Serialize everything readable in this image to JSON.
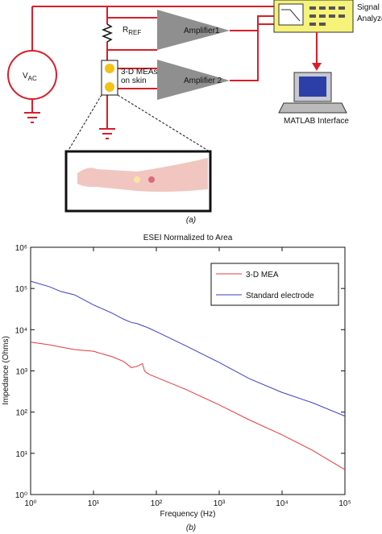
{
  "diagram": {
    "signal_analyzer": [
      "Signal",
      "Analyzer"
    ],
    "rref": {
      "main": "R",
      "sub": "REF"
    },
    "vac": {
      "main": "V",
      "sub": "AC"
    },
    "amplifier1": "Amplifier1",
    "amplifier2": "Amplifier 2",
    "meas": [
      "3-D MEAs",
      "on skin"
    ],
    "matlab": "MATLAB Interface",
    "caption": "(a)"
  },
  "chart_data": {
    "type": "line",
    "title": "ESEI Normalized to Area",
    "x_label": "Frequency (Hz)",
    "y_label": "Impedance (Ohms)",
    "caption": "(b)",
    "x_log": true,
    "y_log": true,
    "grid": false,
    "legend": "upper right",
    "xlim": [
      1,
      100000
    ],
    "ylim": [
      1,
      1000000
    ],
    "xticks": [
      {
        "value": 1,
        "label": "10⁰"
      },
      {
        "value": 10,
        "label": "10¹"
      },
      {
        "value": 100,
        "label": "10²"
      },
      {
        "value": 1000,
        "label": "10³"
      },
      {
        "value": 10000,
        "label": "10⁴"
      },
      {
        "value": 100000,
        "label": "10⁵"
      }
    ],
    "yticks": [
      {
        "value": 1,
        "label": "10⁰"
      },
      {
        "value": 10,
        "label": "10¹"
      },
      {
        "value": 100,
        "label": "10²"
      },
      {
        "value": 1000,
        "label": "10³"
      },
      {
        "value": 10000,
        "label": "10⁴"
      },
      {
        "value": 100000,
        "label": "10⁵"
      },
      {
        "value": 1000000,
        "label": "10⁶"
      }
    ],
    "x": [
      1,
      2,
      3,
      5,
      10,
      20,
      30,
      40,
      50,
      60,
      65,
      70,
      80,
      100,
      300,
      1000,
      3000,
      10000,
      30000,
      100000
    ],
    "series": [
      {
        "name": "3-D MEA",
        "color": "#e8393b",
        "values": [
          5000,
          4300,
          3800,
          3300,
          3000,
          2200,
          1700,
          1200,
          1300,
          1500,
          1000,
          900,
          800,
          700,
          350,
          150,
          65,
          28,
          12,
          4
        ]
      },
      {
        "name": "Standard electrode",
        "color": "#3a3fc8",
        "values": [
          150000,
          110000,
          85000,
          70000,
          40000,
          25000,
          18000,
          15000,
          14000,
          12500,
          12000,
          11500,
          10500,
          9000,
          4000,
          1600,
          650,
          300,
          170,
          80
        ]
      }
    ]
  }
}
